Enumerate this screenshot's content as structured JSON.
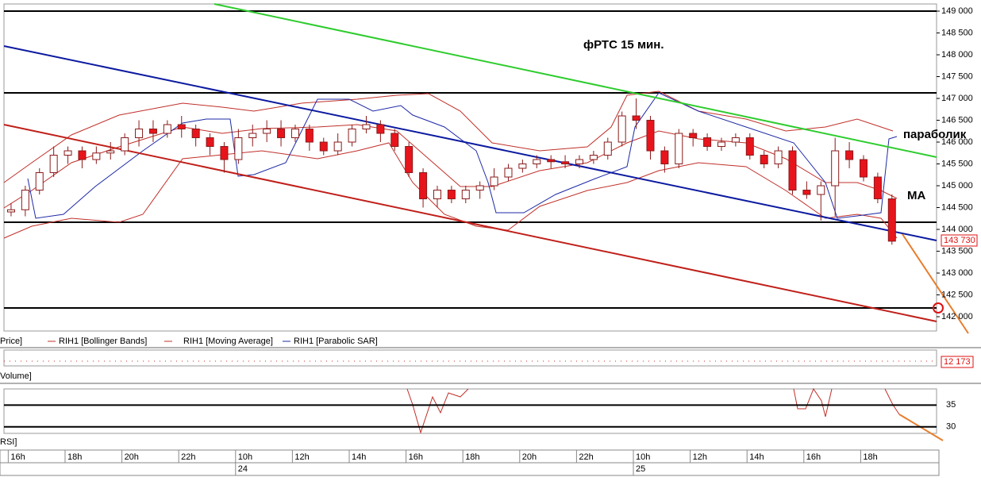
{
  "chart_data": {
    "type": "candlestick",
    "title": "фРТС   15 мин.",
    "annotations": [
      "параболик",
      "МА"
    ],
    "legend": [
      "Price]",
      "RIH1 [Bollinger Bands]",
      "RIH1 [Moving Average]",
      "RIH1 [Parabolic SAR]"
    ],
    "up_color": "#ffffff",
    "down_color": "#e8141c",
    "open": [
      144400,
      144450,
      144900,
      145300,
      145700,
      145800,
      145600,
      145750,
      145800,
      146100,
      146300,
      146200,
      146400,
      146300,
      146100,
      145900,
      145600,
      146100,
      146200,
      146300,
      146100,
      146300,
      146000,
      145800,
      146000,
      146300,
      146400,
      146200,
      145900,
      145300,
      144700,
      144900,
      144700,
      144900,
      145000,
      145200,
      145400,
      145500,
      145600,
      145550,
      145500,
      145600,
      145700,
      146000,
      146600,
      146500,
      145800,
      145500,
      146200,
      146100,
      145900,
      146000,
      146100,
      145700,
      145500,
      145800,
      144900,
      144800,
      145000,
      145800,
      145600,
      145200,
      144700
    ],
    "close": [
      144450,
      144900,
      145300,
      145700,
      145800,
      145600,
      145750,
      145800,
      146100,
      146300,
      146200,
      146400,
      146300,
      146100,
      145900,
      145600,
      146100,
      146200,
      146300,
      146100,
      146300,
      146000,
      145800,
      146000,
      146300,
      146400,
      146200,
      145900,
      145300,
      144700,
      144900,
      144700,
      144900,
      145000,
      145200,
      145400,
      145500,
      145600,
      145550,
      145500,
      145600,
      145700,
      146000,
      146600,
      146500,
      145800,
      145500,
      146200,
      146100,
      145900,
      146000,
      146100,
      145700,
      145500,
      145800,
      144900,
      144800,
      145000,
      145800,
      145600,
      145200,
      144700,
      143730
    ],
    "high": [
      144600,
      145000,
      145400,
      145900,
      145900,
      145900,
      145900,
      146000,
      146200,
      146500,
      146500,
      146500,
      146600,
      146400,
      146200,
      146000,
      146300,
      146400,
      146500,
      146500,
      146400,
      146400,
      146100,
      146200,
      146400,
      146600,
      146500,
      146300,
      146000,
      145400,
      145000,
      145000,
      145000,
      145100,
      145400,
      145500,
      145600,
      145700,
      145700,
      145700,
      145700,
      145800,
      146100,
      146700,
      147000,
      146600,
      145900,
      146300,
      146300,
      146200,
      146100,
      146200,
      146200,
      145800,
      145900,
      145900,
      145100,
      145100,
      146100,
      146000,
      145700,
      145300,
      144800
    ],
    "low": [
      144300,
      144300,
      144800,
      145200,
      145500,
      145400,
      145500,
      145600,
      145700,
      145900,
      146000,
      146100,
      146100,
      145900,
      145700,
      145300,
      145500,
      145900,
      146000,
      145900,
      146000,
      145800,
      145700,
      145700,
      145900,
      146200,
      146000,
      145800,
      145200,
      144500,
      144500,
      144600,
      144600,
      144700,
      144900,
      145100,
      145300,
      145400,
      145400,
      145400,
      145400,
      145500,
      145600,
      145900,
      146300,
      145600,
      145300,
      145400,
      145900,
      145800,
      145800,
      145900,
      145600,
      145400,
      145400,
      144800,
      144700,
      144200,
      144300,
      145400,
      145100,
      144600,
      143650
    ],
    "xlim": [
      -0.5,
      65.14
    ],
    "xticks": [
      {
        "value": -0.2,
        "label": "16h"
      },
      {
        "value": 3.8,
        "label": "18h"
      },
      {
        "value": 7.8,
        "label": "20h"
      },
      {
        "value": 11.8,
        "label": "22h"
      },
      {
        "value": 15.8,
        "label": "10h"
      },
      {
        "value": 19.8,
        "label": "12h"
      },
      {
        "value": 23.8,
        "label": "14h"
      },
      {
        "value": 27.8,
        "label": "16h"
      },
      {
        "value": 31.8,
        "label": "18h"
      },
      {
        "value": 35.8,
        "label": "20h"
      },
      {
        "value": 39.8,
        "label": "22h"
      },
      {
        "value": 43.8,
        "label": "10h"
      },
      {
        "value": 47.8,
        "label": "12h"
      },
      {
        "value": 51.8,
        "label": "14h"
      },
      {
        "value": 55.8,
        "label": "16h"
      },
      {
        "value": 59.8,
        "label": "18h"
      }
    ],
    "dates": [
      {
        "value": 15.8,
        "label": "24"
      },
      {
        "value": 43.8,
        "label": "25"
      }
    ],
    "ylim": [
      141673,
      149164
    ],
    "yticks": [
      {
        "value": 149000,
        "label": "149 000"
      },
      {
        "value": 148500,
        "label": "148 500"
      },
      {
        "value": 148000,
        "label": "148 000"
      },
      {
        "value": 147500,
        "label": "147 500"
      },
      {
        "value": 147000,
        "label": "147 000"
      },
      {
        "value": 146500,
        "label": "146 500"
      },
      {
        "value": 146000,
        "label": "146 000"
      },
      {
        "value": 145500,
        "label": "145 500"
      },
      {
        "value": 145000,
        "label": "145 000"
      },
      {
        "value": 144500,
        "label": "144 500"
      },
      {
        "value": 144000,
        "label": "144 000"
      },
      {
        "value": 143500,
        "label": "143 500"
      },
      {
        "value": 143000,
        "label": "143 000"
      },
      {
        "value": 142500,
        "label": "142 500"
      },
      {
        "value": 142000,
        "label": "142 000"
      }
    ],
    "last_price": {
      "value": 143730,
      "label": "143 730"
    },
    "volume_title": "Volume]",
    "volume_last": {
      "value": 12173,
      "label": "12 173"
    },
    "rsi_title": "RSI]",
    "rsi_ylim": [
      28.5,
      38.7
    ],
    "rsi_yticks": [
      35,
      30
    ]
  }
}
